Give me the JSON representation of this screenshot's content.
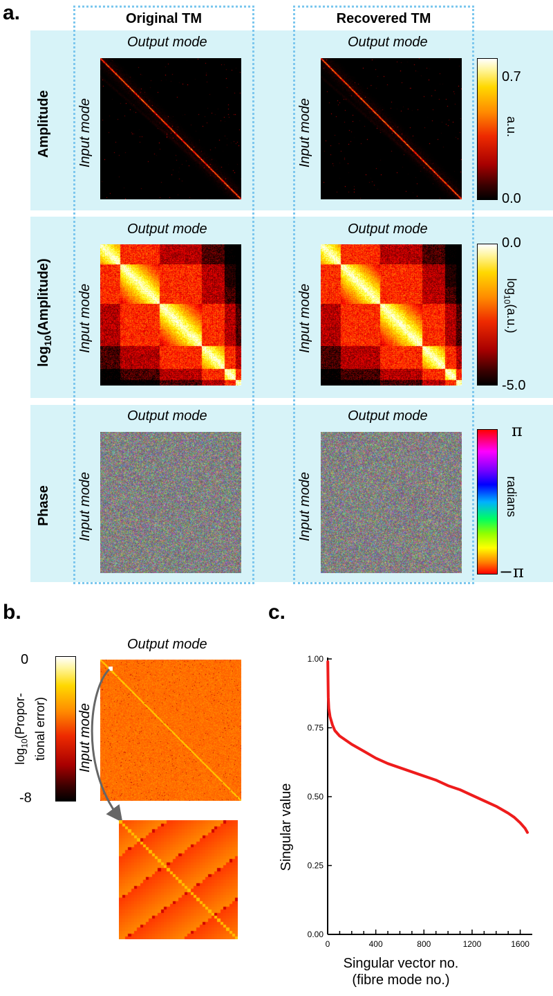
{
  "panels": {
    "a_letter": "a.",
    "b_letter": "b.",
    "c_letter": "c."
  },
  "panel_a": {
    "col_titles": [
      "Original TM",
      "Recovered TM"
    ],
    "row_titles": [
      "Amplitude",
      "log10(Amplitude)",
      "Phase"
    ],
    "row_title_log_prefix": "log",
    "row_title_log_sub": "10",
    "row_title_log_rest": "(Amplitude)",
    "output_label": "Output mode",
    "input_label": "Input mode",
    "colorbars": [
      {
        "max": "0.7",
        "min": "0.0",
        "unit": "a.u."
      },
      {
        "max": "0.0",
        "min": "-5.0",
        "unit_prefix": "log",
        "unit_sub": "10",
        "unit_rest": "(a.u.)"
      },
      {
        "max": "π",
        "min": "−π",
        "unit": "radians"
      }
    ],
    "colors": {
      "band": "#d7f3f8",
      "dotted_box": "#7cc7ee"
    }
  },
  "panel_b": {
    "output_label": "Output mode",
    "input_label": "Input mode",
    "colorbar": {
      "max": "0",
      "min": "-8",
      "label_line1_prefix": "log",
      "label_line1_sub": "10",
      "label_line1_rest": "(Propor-",
      "label_line2": "tional error)"
    }
  },
  "chart_data": {
    "type": "line",
    "title": "",
    "xlabel": "Singular vector no.",
    "xlabel_line2": "(fibre mode no.)",
    "ylabel": "Singular value",
    "xlim": [
      0,
      1700
    ],
    "ylim": [
      0.0,
      1.0
    ],
    "xticks": [
      "0",
      "400",
      "800",
      "1200",
      "1600"
    ],
    "yticks": [
      "0.00",
      "0.25",
      "0.50",
      "0.75",
      "1.00"
    ],
    "grid": false,
    "color": "#ee1c1c",
    "series": [
      {
        "x": [
          1,
          5,
          10,
          20,
          40,
          60,
          100,
          150,
          200,
          300,
          400,
          500,
          600,
          700,
          800,
          900,
          1000,
          1100,
          1200,
          1300,
          1400,
          1500,
          1550,
          1600,
          1640,
          1660
        ],
        "y": [
          0.99,
          0.86,
          0.82,
          0.79,
          0.76,
          0.74,
          0.72,
          0.705,
          0.69,
          0.665,
          0.64,
          0.62,
          0.605,
          0.59,
          0.575,
          0.56,
          0.54,
          0.525,
          0.505,
          0.485,
          0.465,
          0.44,
          0.425,
          0.405,
          0.385,
          0.37
        ]
      }
    ]
  }
}
